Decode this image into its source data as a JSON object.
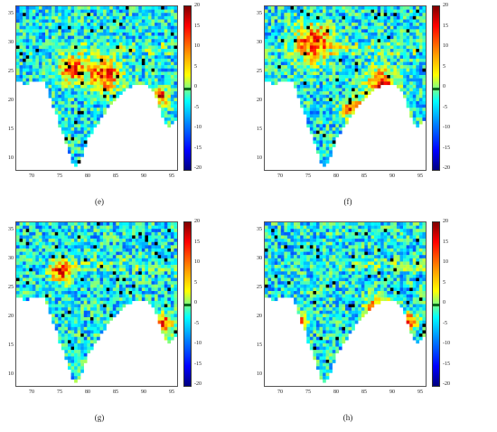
{
  "panels": [
    {
      "id": "e",
      "label": "(e)",
      "hot": [
        [
          0.55,
          0.42,
          0.1
        ],
        [
          0.35,
          0.38,
          0.08
        ],
        [
          0.9,
          0.55,
          0.05
        ]
      ]
    },
    {
      "id": "f",
      "label": "(f)",
      "hot": [
        [
          0.3,
          0.22,
          0.12
        ],
        [
          0.72,
          0.48,
          0.1
        ],
        [
          0.55,
          0.62,
          0.06
        ]
      ]
    },
    {
      "id": "g",
      "label": "(g)",
      "hot": [
        [
          0.28,
          0.3,
          0.07
        ],
        [
          0.92,
          0.62,
          0.06
        ],
        [
          0.55,
          0.96,
          0.05
        ]
      ]
    },
    {
      "id": "h",
      "label": "(h)",
      "hot": [
        [
          0.7,
          0.52,
          0.07
        ],
        [
          0.2,
          0.6,
          0.05
        ],
        [
          0.9,
          0.6,
          0.05
        ]
      ]
    }
  ],
  "axes": {
    "x_ticks": [
      "70",
      "75",
      "80",
      "85",
      "90",
      "95"
    ],
    "y_ticks": [
      "35",
      "30",
      "25",
      "20",
      "15",
      "10"
    ]
  },
  "colorbar": {
    "ticks": [
      "20",
      "15",
      "10",
      "5",
      "0",
      "-5",
      "-10",
      "-15",
      "-20"
    ],
    "range": [
      -20,
      20
    ],
    "colormap": "jet"
  }
}
